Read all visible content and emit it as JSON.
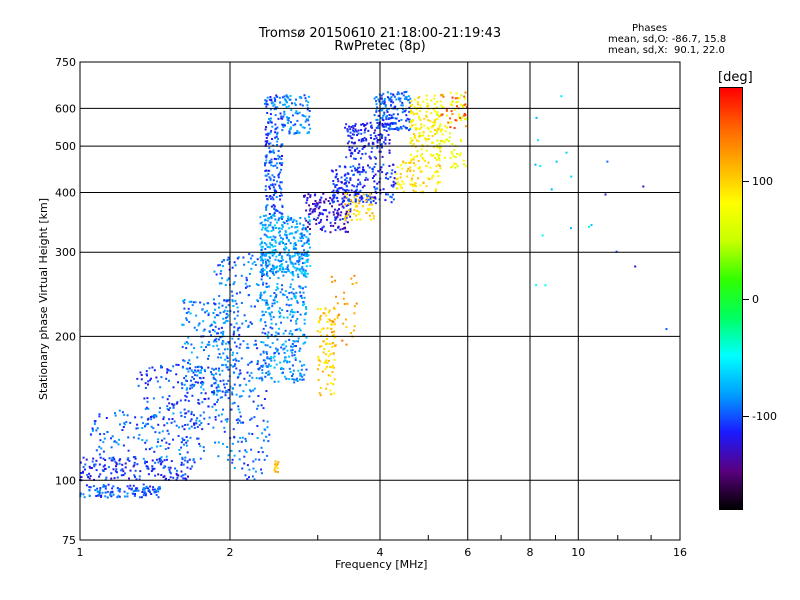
{
  "header": {
    "title_line1": "Tromsø 20150610 21:18:00-21:19:43",
    "title_line2": "RwPretec (8p)"
  },
  "phase_info": {
    "heading": "Phases",
    "line_o": "mean, sd,O: -86.7, 15.8",
    "line_x": "mean, sd,X:  90.1, 22.0"
  },
  "colorbar": {
    "unit_label": "[deg]",
    "tick_labels": [
      "100",
      "0",
      "-100"
    ],
    "tick_values": [
      100,
      0,
      -100
    ],
    "range": [
      -180,
      180
    ],
    "colors": [
      "#000000",
      "#5a0080",
      "#1a1aff",
      "#00a0ff",
      "#00ffff",
      "#00ff60",
      "#30ff00",
      "#c8ff00",
      "#ffff00",
      "#ffb000",
      "#ff6000",
      "#ff0000"
    ]
  },
  "chart_data": {
    "type": "scatter",
    "title": "Tromsø 20150610 21:18:00-21:19:43",
    "subtitle": "RwPretec (8p)",
    "xlabel": "Frequency [MHz]",
    "ylabel": "Stationary phase Virtual Height [km]",
    "x_scale": "log",
    "y_scale": "log",
    "xlim": [
      1,
      16
    ],
    "ylim": [
      75,
      750
    ],
    "xticks": [
      1,
      2,
      4,
      6,
      8,
      10,
      16
    ],
    "xtick_labels": [
      "1",
      "2",
      "4",
      "6",
      "8",
      "10",
      "16"
    ],
    "yticks": [
      75,
      100,
      200,
      300,
      400,
      500,
      600,
      750
    ],
    "ytick_labels": [
      "75",
      "100",
      "200",
      "300",
      "400",
      "500",
      "600",
      "750"
    ],
    "grid": true,
    "color_scale": "phase [deg]",
    "clusters": [
      {
        "x": [
          1.0,
          1.45
        ],
        "y": [
          92,
          98
        ],
        "phase": -100,
        "n": 120
      },
      {
        "x": [
          1.0,
          1.7
        ],
        "y": [
          100,
          112
        ],
        "phase": -110,
        "n": 160
      },
      {
        "x": [
          1.05,
          1.8
        ],
        "y": [
          110,
          140
        ],
        "phase": -95,
        "n": 150
      },
      {
        "x": [
          1.3,
          1.9
        ],
        "y": [
          130,
          175
        ],
        "phase": -105,
        "n": 150
      },
      {
        "x": [
          1.6,
          2.1
        ],
        "y": [
          150,
          240
        ],
        "phase": -90,
        "n": 220
      },
      {
        "x": [
          1.85,
          2.4
        ],
        "y": [
          100,
          300
        ],
        "phase": -95,
        "n": 300
      },
      {
        "x": [
          2.3,
          2.85
        ],
        "y": [
          160,
          300
        ],
        "phase": -85,
        "n": 330
      },
      {
        "x": [
          2.3,
          2.9
        ],
        "y": [
          270,
          360
        ],
        "phase": -80,
        "n": 300
      },
      {
        "x": [
          2.35,
          2.55
        ],
        "y": [
          350,
          640
        ],
        "phase": -100,
        "n": 200
      },
      {
        "x": [
          2.55,
          2.9
        ],
        "y": [
          530,
          640
        ],
        "phase": -90,
        "n": 90
      },
      {
        "x": [
          2.8,
          3.5
        ],
        "y": [
          330,
          400
        ],
        "phase": -125,
        "n": 140
      },
      {
        "x": [
          3.2,
          4.3
        ],
        "y": [
          380,
          460
        ],
        "phase": -110,
        "n": 200
      },
      {
        "x": [
          3.4,
          4.2
        ],
        "y": [
          470,
          560
        ],
        "phase": -115,
        "n": 140
      },
      {
        "x": [
          3.9,
          4.6
        ],
        "y": [
          540,
          650
        ],
        "phase": -100,
        "n": 160
      },
      {
        "x": [
          3.0,
          3.25
        ],
        "y": [
          150,
          230
        ],
        "phase": 100,
        "n": 90
      },
      {
        "x": [
          3.4,
          3.9
        ],
        "y": [
          350,
          400
        ],
        "phase": 100,
        "n": 50
      },
      {
        "x": [
          4.3,
          5.3
        ],
        "y": [
          400,
          470
        ],
        "phase": 95,
        "n": 90
      },
      {
        "x": [
          4.6,
          5.3
        ],
        "y": [
          470,
          640
        ],
        "phase": 85,
        "n": 140
      },
      {
        "x": [
          5.2,
          6.0
        ],
        "y": [
          450,
          650
        ],
        "phase": 70,
        "n": 80
      },
      {
        "x": [
          5.3,
          6.0
        ],
        "y": [
          540,
          650
        ],
        "phase": 145,
        "n": 30
      },
      {
        "x": [
          3.2,
          3.6
        ],
        "y": [
          190,
          270
        ],
        "phase": 120,
        "n": 35
      },
      {
        "x": [
          2.45,
          2.5
        ],
        "y": [
          104,
          110
        ],
        "phase": 110,
        "n": 12
      },
      {
        "x": [
          8.0,
          11.0
        ],
        "y": [
          250,
          650
        ],
        "phase": -60,
        "n": 15
      },
      {
        "x": [
          11.0,
          16.0
        ],
        "y": [
          200,
          500
        ],
        "phase": -110,
        "n": 6
      }
    ]
  }
}
